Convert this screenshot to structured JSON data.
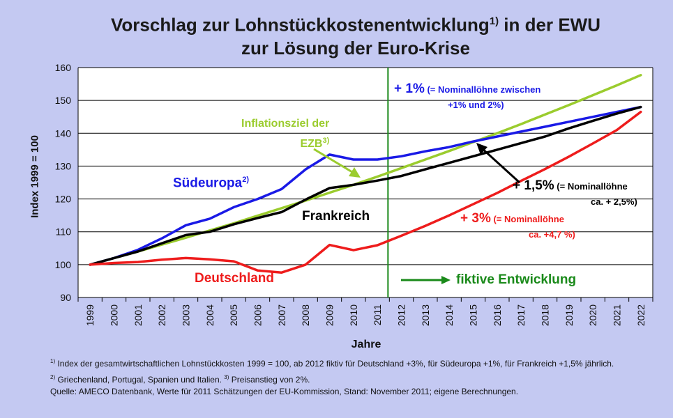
{
  "title": {
    "line1_a": "Vorschlag zur Lohnstückkostenentwicklung",
    "line1_sup": "1)",
    "line1_b": " in der EWU",
    "line2": "zur Lösung der Euro-Krise"
  },
  "colors": {
    "background": "#c4c9f2",
    "plot_background": "#ffffff",
    "suedeuropa": "#1a1ae6",
    "frankreich": "#000000",
    "deutschland": "#ee1c1c",
    "inflationsziel": "#9bcc2e",
    "fiktiv": "#1a8a1a"
  },
  "annotations": {
    "suedeuropa": "Südeuropa",
    "suedeuropa_sup": "2)",
    "frankreich": "Frankreich",
    "deutschland": "Deutschland",
    "inflation_line1": "Inflationsziel der",
    "inflation_line2": "EZB",
    "inflation_sup": "3)",
    "plus1_big": "+ 1%",
    "plus1_small": " (= Nominallöhne zwischen",
    "plus1_line2": "+1% und 2%)",
    "plus15_big": "+ 1,5%",
    "plus15_small": " (= Nominallöhne",
    "plus15_line2": "ca. + 2,5%)",
    "plus3_big": "+ 3%",
    "plus3_small": " (= Nominallöhne",
    "plus3_line2": "ca. +4,7 %)",
    "fiktiv": "fiktive Entwicklung"
  },
  "footnotes": {
    "n1_sup": "1)",
    "n1": " Index der gesamtwirtschaftlichen Lohnstückkosten 1999 = 100, ab 2012 fiktiv für Deutschland +3%, für Südeuropa +1%, für Frankreich +1,5% jährlich.",
    "n2_sup": "2)",
    "n2": " Griechenland, Portugal, Spanien und Italien. ",
    "n3_sup": "3)",
    "n3": " Preisanstieg von 2%.",
    "source": "Quelle: AMECO Datenbank, Werte für 2011 Schätzungen der EU-Kommission, Stand: November 2011; eigene Berechnungen."
  },
  "chart_data": {
    "type": "line",
    "ylabel": "Index 1999 = 100",
    "xlabel": "Jahre",
    "ylim": [
      90,
      160
    ],
    "yticks": [
      90,
      100,
      110,
      120,
      130,
      140,
      150,
      160
    ],
    "x": [
      "1999",
      "2000",
      "2001",
      "2002",
      "2003",
      "2004",
      "2005",
      "2006",
      "2007",
      "2008",
      "2009",
      "2010",
      "2011",
      "2012",
      "2013",
      "2014",
      "2015",
      "2016",
      "2017",
      "2018",
      "2019",
      "2020",
      "2021",
      "2022"
    ],
    "grid": "horizontal",
    "vertical_marker_after": "2011",
    "series": [
      {
        "name": "Südeuropa",
        "color": "#1a1ae6",
        "values": [
          100,
          102,
          104.5,
          108,
          112,
          114,
          117.5,
          120,
          123,
          129,
          133.5,
          132,
          132,
          133,
          134.5,
          135.8,
          137.5,
          139,
          140.5,
          142,
          143.5,
          145,
          146.5,
          148
        ]
      },
      {
        "name": "Frankreich",
        "color": "#000000",
        "values": [
          100,
          102,
          104,
          106.5,
          109,
          110,
          112.3,
          114.2,
          116,
          119.8,
          123.3,
          124.3,
          125.6,
          127,
          129,
          131,
          133,
          135,
          137,
          139,
          141.5,
          143.8,
          146,
          148
        ]
      },
      {
        "name": "Deutschland",
        "color": "#ee1c1c",
        "values": [
          100,
          100.5,
          100.8,
          101.5,
          102,
          101.6,
          101,
          98.2,
          97.6,
          100,
          106,
          104.4,
          105.9,
          108.8,
          111.8,
          115,
          118.4,
          121.8,
          125.5,
          129.1,
          132.9,
          136.9,
          141,
          146.5
        ]
      },
      {
        "name": "Inflationsziel der EZB",
        "color": "#9bcc2e",
        "values": [
          100,
          102,
          104,
          106.1,
          108.2,
          110.4,
          112.6,
          114.9,
          117.2,
          119.5,
          121.9,
          124.3,
          126.8,
          129.4,
          132,
          134.6,
          137.3,
          140,
          142.8,
          145.7,
          148.6,
          151.6,
          154.6,
          157.7
        ]
      }
    ]
  }
}
